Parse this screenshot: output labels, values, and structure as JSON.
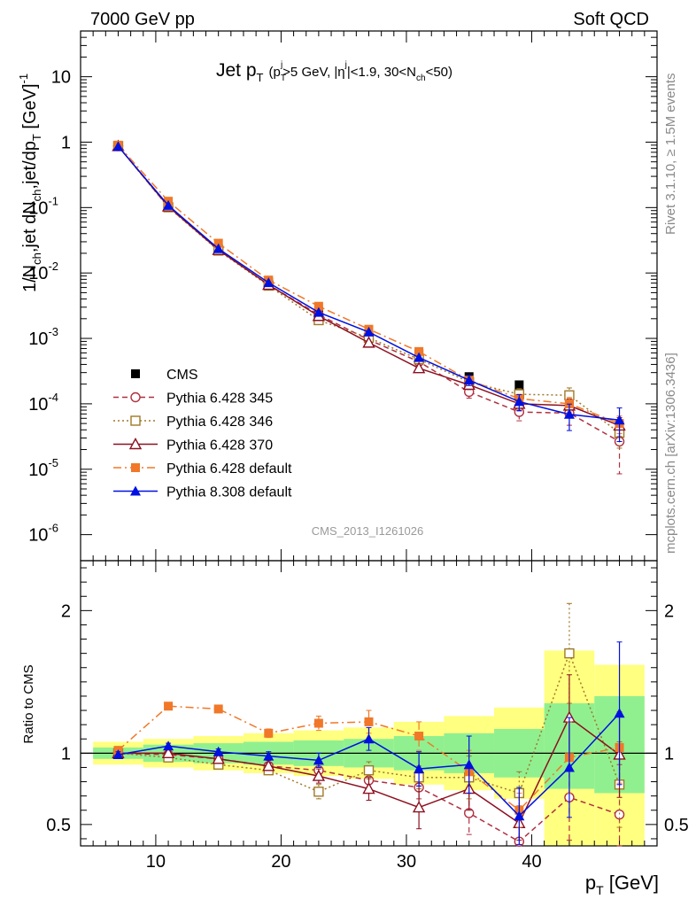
{
  "header": {
    "left": "7000 GeV pp",
    "right": "Soft QCD"
  },
  "side_labels": {
    "rivet": "Rivet 3.1.10, ≥ 1.5M events",
    "mcplots": "mcplots.cern.ch [arXiv:1306.3436]"
  },
  "analysis_id": "CMS_2013_I1261026",
  "chart_data": [
    {
      "type": "line",
      "title": "Jet p_T (p_T^j>5 GeV, |η^j|<1.9, 30<N_ch<50)",
      "title_parts": {
        "main": "Jet p",
        "main_sub": "T",
        "open": "(p",
        "p_sub": "T",
        "p_sup": "j",
        "p_rest": ">5 GeV, |η",
        "eta_sup": "j",
        "eta_rest": "|<1.9, 30<N",
        "nch_sub": "ch",
        "close": "<50)"
      },
      "ylabel": "1/N_ch,jet dN_ch,jet/dp_T [GeV]^-1",
      "ylabel_parts": {
        "a": "1/N",
        "a_sub": "ch",
        "b": ",jet dN",
        "b_sub": "ch",
        "c": ",jet/dp",
        "c_sub": "T",
        "d": " [GeV]",
        "d_sup": "-1"
      },
      "yscale": "log",
      "ylim": [
        4e-07,
        50
      ],
      "xlim": [
        4,
        50
      ],
      "y_ticks": [
        {
          "value": 1e-06,
          "base": "10",
          "exp": "-6"
        },
        {
          "value": 1e-05,
          "base": "10",
          "exp": "-5"
        },
        {
          "value": 0.0001,
          "base": "10",
          "exp": "-4"
        },
        {
          "value": 0.001,
          "base": "10",
          "exp": "-3"
        },
        {
          "value": 0.01,
          "base": "10",
          "exp": "-2"
        },
        {
          "value": 0.1,
          "base": "10",
          "exp": "-1"
        },
        {
          "value": 1,
          "base": "1",
          "exp": ""
        },
        {
          "value": 10,
          "base": "10",
          "exp": ""
        }
      ],
      "x": [
        7,
        11,
        15,
        19,
        23,
        27,
        31,
        35,
        39,
        43,
        47
      ],
      "series": [
        {
          "name": "CMS",
          "color": "#000000",
          "marker": "square-filled",
          "line": "none",
          "values": [
            0.87,
            0.105,
            0.0235,
            0.0073,
            0.0026,
            0.00115,
            0.00058,
            0.00026,
            0.000195,
            0.000105,
            4.65e-05
          ]
        },
        {
          "name": "Pythia 6.428 345",
          "color": "#b03040",
          "marker": "circle-open",
          "line": "dashed",
          "values": [
            0.87,
            0.102,
            0.0225,
            0.0066,
            0.0023,
            0.00095,
            0.00044,
            0.000152,
            7.5e-05,
            7.2e-05,
            2.65e-05
          ],
          "errors": [
            0,
            0,
            0,
            0,
            0,
            0,
            0,
            3e-05,
            2e-05,
            2.5e-05,
            1.8e-05
          ]
        },
        {
          "name": "Pythia 6.428 346",
          "color": "#a07828",
          "marker": "square-open",
          "line": "dotted",
          "values": [
            0.87,
            0.101,
            0.022,
            0.0064,
            0.0019,
            0.00102,
            0.00048,
            0.000215,
            0.00014,
            0.000135,
            3.6e-05
          ],
          "errors": [
            0,
            0,
            0,
            0,
            0,
            0,
            0,
            4e-05,
            3e-05,
            4e-05,
            1.5e-05
          ]
        },
        {
          "name": "Pythia 6.428 370",
          "color": "#8c1020",
          "marker": "triangle-open",
          "line": "solid",
          "values": [
            0.87,
            0.104,
            0.0225,
            0.0066,
            0.0022,
            0.00086,
            0.00035,
            0.000195,
            0.0001,
            9.4e-05,
            4.65e-05
          ],
          "errors": [
            0,
            0,
            0,
            0,
            0,
            0,
            0,
            3e-05,
            2e-05,
            2.5e-05,
            1.5e-05
          ]
        },
        {
          "name": "Pythia 6.428 default",
          "color": "#f07828",
          "marker": "square-filled",
          "line": "dashdot",
          "values": [
            0.9,
            0.125,
            0.0285,
            0.0078,
            0.0031,
            0.00138,
            0.00063,
            0.00023,
            0.00012,
            0.0001,
            5e-05
          ],
          "errors": [
            0,
            0,
            0,
            0,
            0,
            0,
            0,
            3e-05,
            2e-05,
            2.5e-05,
            1.5e-05
          ]
        },
        {
          "name": "Pythia 8.308 default",
          "color": "#0010e0",
          "marker": "triangle-filled",
          "line": "solid",
          "values": [
            0.86,
            0.108,
            0.0235,
            0.0071,
            0.0025,
            0.00125,
            0.00051,
            0.00023,
            0.000108,
            6.9e-05,
            5.65e-05
          ],
          "errors": [
            0,
            0,
            0,
            0,
            0,
            0,
            0,
            4e-05,
            3e-05,
            3e-05,
            3e-05
          ]
        }
      ]
    },
    {
      "type": "line",
      "ylabel": "Ratio to CMS",
      "xlabel": "p_T [GeV]",
      "xlabel_parts": {
        "a": "p",
        "sub": "T",
        "b": " [GeV]"
      },
      "ylim": [
        0.35,
        2.35
      ],
      "xlim": [
        4,
        50
      ],
      "x_ticks": [
        10,
        20,
        30,
        40
      ],
      "y_ticks": [
        0.5,
        1,
        2
      ],
      "y_tick_labels": [
        "0.5",
        "1",
        "2"
      ],
      "bands": {
        "bin_edges": [
          5,
          9,
          13,
          17,
          21,
          25,
          29,
          33,
          37,
          41,
          45,
          49
        ],
        "inner": [
          [
            0.96,
            1.04
          ],
          [
            0.94,
            1.06
          ],
          [
            0.93,
            1.07
          ],
          [
            0.92,
            1.08
          ],
          [
            0.91,
            1.09
          ],
          [
            0.9,
            1.1
          ],
          [
            0.88,
            1.12
          ],
          [
            0.86,
            1.14
          ],
          [
            0.83,
            1.17
          ],
          [
            0.75,
            1.35
          ],
          [
            0.72,
            1.4
          ]
        ],
        "outer": [
          [
            0.92,
            1.08
          ],
          [
            0.9,
            1.1
          ],
          [
            0.88,
            1.12
          ],
          [
            0.86,
            1.14
          ],
          [
            0.84,
            1.16
          ],
          [
            0.82,
            1.18
          ],
          [
            0.78,
            1.22
          ],
          [
            0.74,
            1.26
          ],
          [
            0.68,
            1.32
          ],
          [
            0.35,
            1.72
          ],
          [
            0.35,
            1.62
          ]
        ]
      },
      "x": [
        7,
        11,
        15,
        19,
        23,
        27,
        31,
        35,
        39,
        43,
        47
      ],
      "series": [
        {
          "name": "Pythia 6.428 345",
          "values": [
            1.0,
            0.99,
            0.96,
            0.91,
            0.88,
            0.81,
            0.76,
            0.58,
            0.38,
            0.69,
            0.57
          ],
          "errors": [
            0.02,
            0.02,
            0.02,
            0.02,
            0.03,
            0.05,
            0.08,
            0.15,
            0.12,
            0.3,
            0.35
          ]
        },
        {
          "name": "Pythia 6.428 346",
          "values": [
            1.0,
            0.97,
            0.92,
            0.88,
            0.73,
            0.88,
            0.83,
            0.83,
            0.72,
            1.7,
            0.78
          ],
          "errors": [
            0.02,
            0.02,
            0.02,
            0.02,
            0.05,
            0.06,
            0.08,
            0.15,
            0.15,
            0.35,
            0.3
          ]
        },
        {
          "name": "Pythia 6.428 370",
          "values": [
            1.0,
            1.0,
            0.96,
            0.91,
            0.84,
            0.75,
            0.62,
            0.75,
            0.51,
            1.25,
            0.99
          ],
          "errors": [
            0.02,
            0.02,
            0.02,
            0.02,
            0.05,
            0.08,
            0.15,
            0.15,
            0.12,
            0.3,
            0.3
          ]
        },
        {
          "name": "Pythia 6.428 default",
          "values": [
            1.02,
            1.33,
            1.31,
            1.14,
            1.21,
            1.22,
            1.12,
            0.87,
            0.6,
            0.97,
            1.04
          ],
          "errors": [
            0.02,
            0.02,
            0.02,
            0.03,
            0.05,
            0.08,
            0.1,
            0.15,
            0.12,
            0.25,
            0.25
          ]
        },
        {
          "name": "Pythia 8.308 default",
          "values": [
            0.99,
            1.05,
            1.01,
            0.98,
            0.95,
            1.1,
            0.89,
            0.92,
            0.56,
            0.9,
            1.28
          ],
          "errors": [
            0.02,
            0.02,
            0.02,
            0.03,
            0.05,
            0.08,
            0.12,
            0.2,
            0.2,
            0.35,
            0.5
          ]
        }
      ]
    }
  ]
}
